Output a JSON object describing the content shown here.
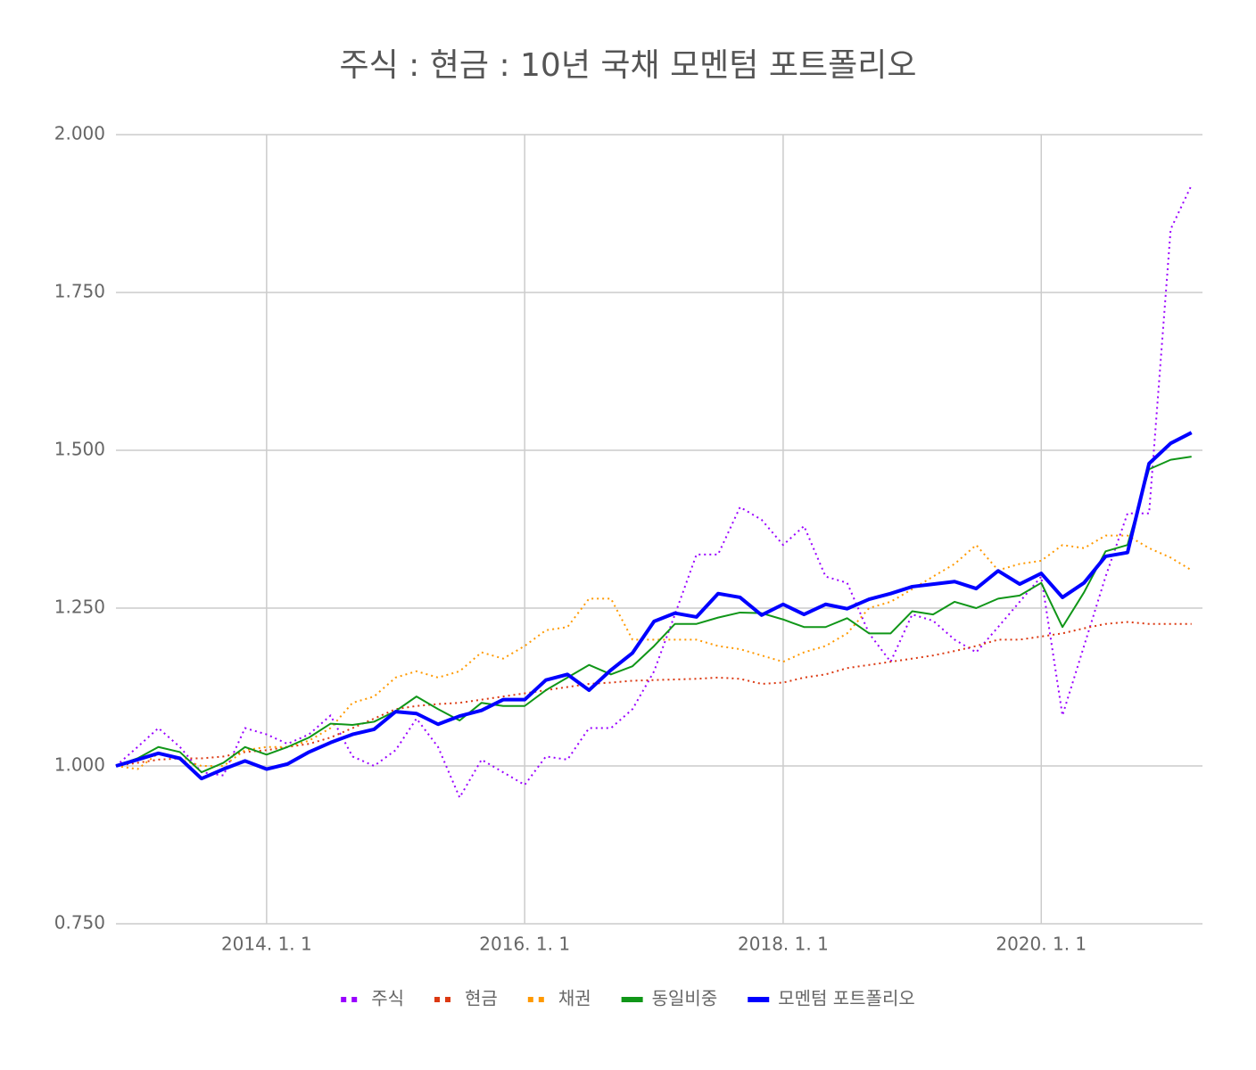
{
  "chart_data": {
    "type": "line",
    "title": "주식 : 현금 : 10년 국채 모멘텀 포트폴리오",
    "x": [
      "2012-11-01",
      "2013-01-01",
      "2013-03-01",
      "2013-05-01",
      "2013-07-01",
      "2013-09-01",
      "2013-11-01",
      "2014-01-01",
      "2014-03-01",
      "2014-05-01",
      "2014-07-01",
      "2014-09-01",
      "2014-11-01",
      "2015-01-01",
      "2015-03-01",
      "2015-05-01",
      "2015-07-01",
      "2015-09-01",
      "2015-11-01",
      "2016-01-01",
      "2016-03-01",
      "2016-05-01",
      "2016-07-01",
      "2016-09-01",
      "2016-11-01",
      "2017-01-01",
      "2017-03-01",
      "2017-05-01",
      "2017-07-01",
      "2017-09-01",
      "2017-11-01",
      "2018-01-01",
      "2018-03-01",
      "2018-05-01",
      "2018-07-01",
      "2018-09-01",
      "2018-11-01",
      "2019-01-01",
      "2019-03-01",
      "2019-05-01",
      "2019-07-01",
      "2019-09-01",
      "2019-11-01",
      "2020-01-01",
      "2020-03-01",
      "2020-05-01",
      "2020-07-01",
      "2020-09-01",
      "2020-11-01",
      "2021-01-01",
      "2021-03-01"
    ],
    "series": [
      {
        "name": "주식",
        "color": "#9900ff",
        "line_style": "dotted",
        "line_width": 2,
        "values": [
          1.0,
          1.03,
          1.06,
          1.03,
          0.99,
          0.985,
          1.06,
          1.05,
          1.035,
          1.05,
          1.08,
          1.015,
          1.0,
          1.025,
          1.075,
          1.03,
          0.95,
          1.01,
          0.99,
          0.97,
          1.015,
          1.01,
          1.06,
          1.06,
          1.09,
          1.15,
          1.24,
          1.335,
          1.335,
          1.41,
          1.39,
          1.35,
          1.38,
          1.3,
          1.29,
          1.21,
          1.165,
          1.24,
          1.23,
          1.2,
          1.18,
          1.22,
          1.26,
          1.3,
          1.08,
          1.19,
          1.3,
          1.4,
          1.4,
          1.85,
          1.92
        ]
      },
      {
        "name": "현금",
        "color": "#dc3912",
        "line_style": "dotted",
        "line_width": 2,
        "values": [
          1.0,
          1.005,
          1.01,
          1.012,
          1.012,
          1.015,
          1.022,
          1.025,
          1.03,
          1.035,
          1.045,
          1.06,
          1.075,
          1.09,
          1.095,
          1.098,
          1.1,
          1.105,
          1.11,
          1.115,
          1.12,
          1.125,
          1.13,
          1.132,
          1.135,
          1.136,
          1.137,
          1.138,
          1.14,
          1.138,
          1.13,
          1.132,
          1.14,
          1.145,
          1.155,
          1.16,
          1.165,
          1.17,
          1.175,
          1.182,
          1.19,
          1.2,
          1.2,
          1.205,
          1.21,
          1.218,
          1.225,
          1.228,
          1.225,
          1.225,
          1.225
        ]
      },
      {
        "name": "채권",
        "color": "#ff9900",
        "line_style": "dotted",
        "line_width": 2,
        "values": [
          1.0,
          0.995,
          1.02,
          1.01,
          1.0,
          1.0,
          1.025,
          1.03,
          1.03,
          1.04,
          1.06,
          1.1,
          1.11,
          1.14,
          1.15,
          1.14,
          1.15,
          1.18,
          1.17,
          1.19,
          1.215,
          1.22,
          1.265,
          1.265,
          1.2,
          1.2,
          1.2,
          1.2,
          1.19,
          1.185,
          1.175,
          1.165,
          1.18,
          1.19,
          1.21,
          1.25,
          1.26,
          1.28,
          1.3,
          1.32,
          1.35,
          1.31,
          1.32,
          1.325,
          1.35,
          1.345,
          1.365,
          1.365,
          1.345,
          1.33,
          1.31
        ]
      },
      {
        "name": "동일비중",
        "color": "#109618",
        "line_style": "solid",
        "line_width": 2,
        "values": [
          1.0,
          1.012,
          1.03,
          1.022,
          0.99,
          1.005,
          1.03,
          1.018,
          1.03,
          1.045,
          1.067,
          1.065,
          1.07,
          1.087,
          1.11,
          1.09,
          1.072,
          1.1,
          1.095,
          1.095,
          1.12,
          1.14,
          1.16,
          1.145,
          1.158,
          1.19,
          1.225,
          1.225,
          1.235,
          1.243,
          1.242,
          1.232,
          1.22,
          1.22,
          1.234,
          1.21,
          1.21,
          1.245,
          1.24,
          1.26,
          1.25,
          1.265,
          1.27,
          1.29,
          1.22,
          1.275,
          1.34,
          1.35,
          1.47,
          1.485,
          1.49
        ]
      },
      {
        "name": "모멘텀 포트폴리오",
        "color": "#0000ff",
        "line_style": "solid",
        "line_width": 4,
        "values": [
          1.0,
          1.01,
          1.02,
          1.012,
          0.98,
          0.995,
          1.008,
          0.995,
          1.003,
          1.022,
          1.037,
          1.05,
          1.058,
          1.086,
          1.083,
          1.066,
          1.079,
          1.088,
          1.105,
          1.105,
          1.136,
          1.145,
          1.12,
          1.152,
          1.179,
          1.229,
          1.242,
          1.236,
          1.273,
          1.267,
          1.239,
          1.256,
          1.24,
          1.256,
          1.249,
          1.264,
          1.273,
          1.284,
          1.288,
          1.292,
          1.281,
          1.309,
          1.288,
          1.305,
          1.267,
          1.29,
          1.332,
          1.338,
          1.479,
          1.511,
          1.528
        ]
      }
    ],
    "xlim": [
      "2012-11-01",
      "2021-04-01"
    ],
    "xticks": [
      {
        "value": "2014-01-01",
        "label": "2014. 1. 1"
      },
      {
        "value": "2016-01-01",
        "label": "2016. 1. 1"
      },
      {
        "value": "2018-01-01",
        "label": "2018. 1. 1"
      },
      {
        "value": "2020-01-01",
        "label": "2020. 1. 1"
      }
    ],
    "ylim": [
      0.75,
      2
    ],
    "yticks": [
      {
        "value": 0.75,
        "label": "0.750"
      },
      {
        "value": 1,
        "label": "1.000"
      },
      {
        "value": 1.25,
        "label": "1.250"
      },
      {
        "value": 1.5,
        "label": "1.500"
      },
      {
        "value": 1.75,
        "label": "1.750"
      },
      {
        "value": 2,
        "label": "2.000"
      }
    ],
    "grid": true,
    "legend": "bottom"
  }
}
